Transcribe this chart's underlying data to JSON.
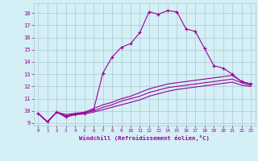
{
  "xlabel": "Windchill (Refroidissement éolien,°C)",
  "bg_color": "#d4eff5",
  "line_color": "#990099",
  "grid_color": "#aec8d0",
  "xlim": [
    -0.5,
    23.5
  ],
  "ylim": [
    8.8,
    18.8
  ],
  "yticks": [
    9,
    10,
    11,
    12,
    13,
    14,
    15,
    16,
    17,
    18
  ],
  "xticks": [
    0,
    1,
    2,
    3,
    4,
    5,
    6,
    7,
    8,
    9,
    10,
    11,
    12,
    13,
    14,
    15,
    16,
    17,
    18,
    19,
    20,
    21,
    22,
    23
  ],
  "series": [
    {
      "x": [
        0,
        1,
        2,
        3,
        4,
        5,
        6,
        7,
        8,
        9,
        10,
        11,
        12,
        13,
        14,
        15,
        16,
        17,
        18,
        19,
        20,
        21,
        22,
        23
      ],
      "y": [
        9.8,
        9.1,
        9.9,
        9.5,
        9.7,
        9.8,
        10.1,
        13.1,
        14.4,
        15.2,
        15.5,
        16.4,
        18.1,
        17.9,
        18.2,
        18.1,
        16.7,
        16.5,
        15.1,
        13.7,
        13.5,
        13.0,
        12.4,
        12.2
      ],
      "marker": true
    },
    {
      "x": [
        0,
        1,
        2,
        3,
        4,
        5,
        6,
        7,
        8,
        9,
        10,
        11,
        12,
        13,
        14,
        15,
        16,
        17,
        18,
        19,
        20,
        21,
        22,
        23
      ],
      "y": [
        9.8,
        9.1,
        9.9,
        9.7,
        9.8,
        9.9,
        10.2,
        10.5,
        10.7,
        11.0,
        11.2,
        11.5,
        11.8,
        12.0,
        12.2,
        12.3,
        12.4,
        12.5,
        12.6,
        12.7,
        12.8,
        12.9,
        12.4,
        12.2
      ],
      "marker": false
    },
    {
      "x": [
        0,
        1,
        2,
        3,
        4,
        5,
        6,
        7,
        8,
        9,
        10,
        11,
        12,
        13,
        14,
        15,
        16,
        17,
        18,
        19,
        20,
        21,
        22,
        23
      ],
      "y": [
        9.8,
        9.1,
        9.9,
        9.6,
        9.75,
        9.85,
        10.0,
        10.3,
        10.5,
        10.8,
        11.0,
        11.2,
        11.5,
        11.7,
        11.9,
        12.0,
        12.1,
        12.2,
        12.3,
        12.4,
        12.5,
        12.6,
        12.3,
        12.1
      ],
      "marker": false
    },
    {
      "x": [
        0,
        1,
        2,
        3,
        4,
        5,
        6,
        7,
        8,
        9,
        10,
        11,
        12,
        13,
        14,
        15,
        16,
        17,
        18,
        19,
        20,
        21,
        22,
        23
      ],
      "y": [
        9.8,
        9.1,
        9.9,
        9.5,
        9.7,
        9.75,
        9.9,
        10.1,
        10.3,
        10.5,
        10.7,
        10.9,
        11.2,
        11.4,
        11.6,
        11.75,
        11.85,
        11.95,
        12.05,
        12.15,
        12.25,
        12.35,
        12.1,
        12.0
      ],
      "marker": false
    }
  ]
}
